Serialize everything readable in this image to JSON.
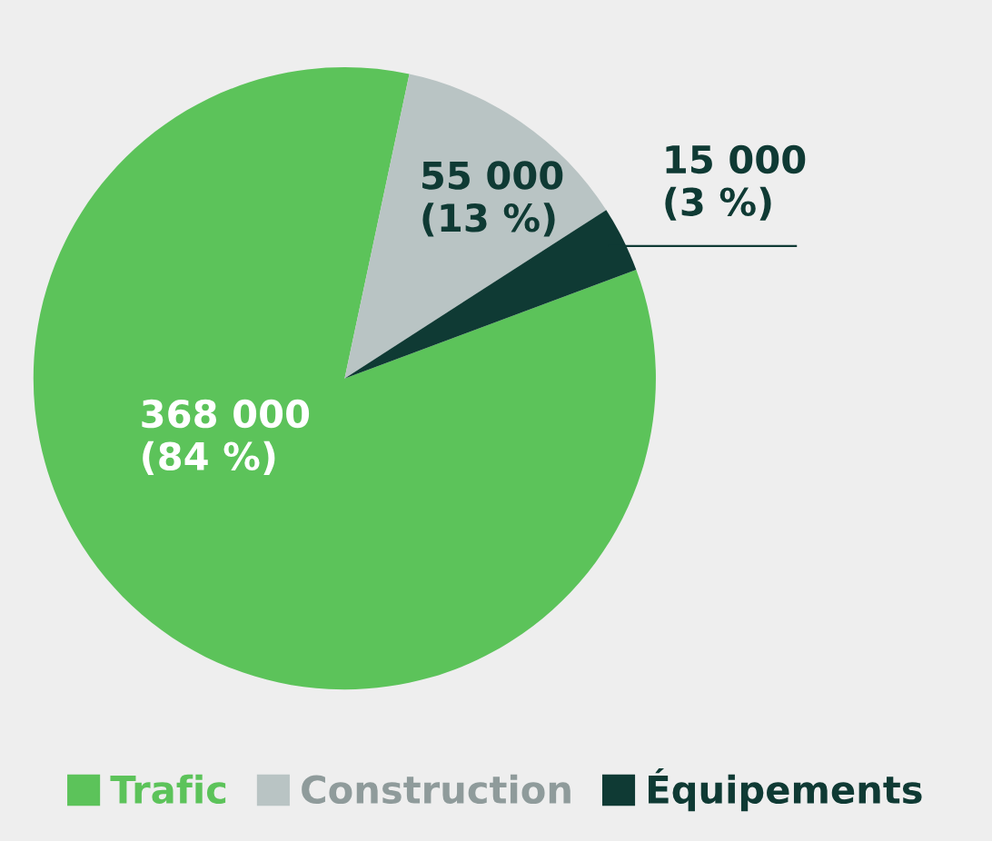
{
  "chart_data": {
    "type": "pie",
    "categories": [
      "Trafic",
      "Construction",
      "Équipements"
    ],
    "values": [
      368000,
      55000,
      15000
    ],
    "colors": [
      "#5cc35a",
      "#b9c4c4",
      "#0f3a34"
    ],
    "value_labels": [
      "368 000\n(84 %)",
      "55 000\n(13 %)",
      "15 000\n(3 %)"
    ],
    "legend": "bottom"
  }
}
